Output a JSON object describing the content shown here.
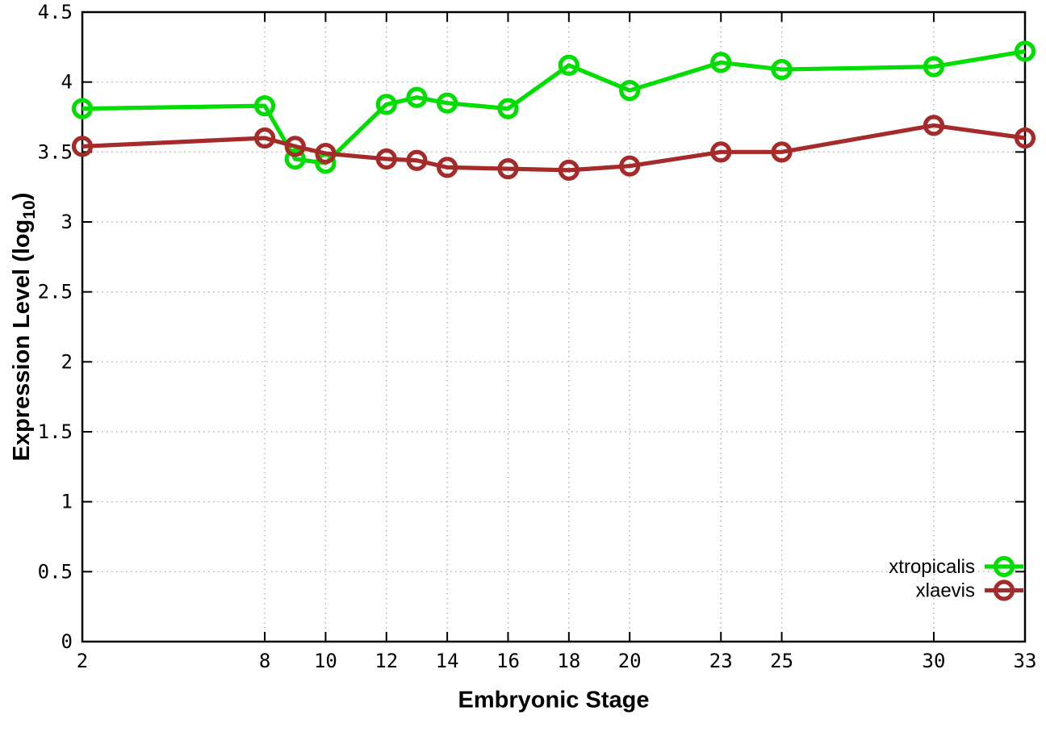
{
  "chart_data": {
    "type": "line",
    "title": "",
    "xlabel": "Embryonic Stage",
    "ylabel": "Expression Level (log10)",
    "ylabel_parts": {
      "pre": "Expression Level (log",
      "sub": "10",
      "post": ")"
    },
    "xlim": [
      2,
      33
    ],
    "ylim": [
      0,
      4.5
    ],
    "grid": true,
    "x_ticks": [
      2,
      8,
      10,
      12,
      14,
      16,
      18,
      20,
      23,
      25,
      30,
      33
    ],
    "x_tick_labels": [
      "2",
      "8",
      "10",
      "12",
      "14",
      "16",
      "18",
      "20",
      "23",
      "25",
      "30",
      "33"
    ],
    "y_ticks": [
      0,
      0.5,
      1,
      1.5,
      2,
      2.5,
      3,
      3.5,
      4,
      4.5
    ],
    "y_tick_labels": [
      "0",
      "0.5",
      "1",
      "1.5",
      "2",
      "2.5",
      "3",
      "3.5",
      "4",
      "4.5"
    ],
    "x": [
      2,
      8,
      9,
      10,
      12,
      13,
      14,
      16,
      18,
      20,
      23,
      25,
      30,
      33
    ],
    "series": [
      {
        "name": "xtropicalis",
        "color": "#00dd00",
        "values": [
          3.81,
          3.83,
          3.45,
          3.42,
          3.84,
          3.89,
          3.85,
          3.81,
          4.12,
          3.94,
          4.14,
          4.09,
          4.11,
          4.22
        ]
      },
      {
        "name": "xlaevis",
        "color": "#a52a2a",
        "values": [
          3.54,
          3.6,
          3.54,
          3.49,
          3.45,
          3.44,
          3.39,
          3.38,
          3.37,
          3.4,
          3.5,
          3.5,
          3.69,
          3.6
        ]
      }
    ],
    "marker": "open-circle",
    "legend_position": "bottom-right",
    "grid_color": "#b0b0b0",
    "axis_color": "#000000"
  }
}
